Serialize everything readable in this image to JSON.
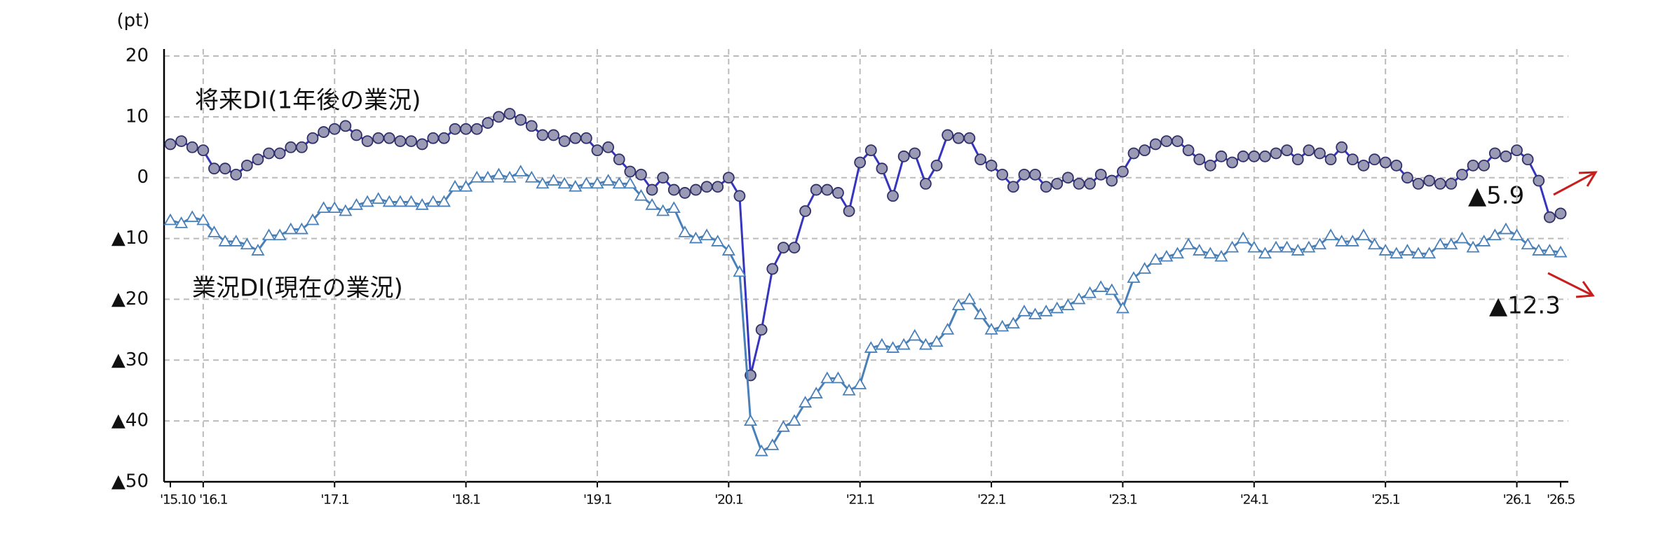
{
  "chart_data": {
    "type": "line",
    "unit_label": "(pt)",
    "categories": [
      "'15.10",
      null,
      null,
      "'16.1",
      null,
      null,
      null,
      null,
      null,
      null,
      null,
      null,
      null,
      null,
      null,
      "'17.1",
      null,
      null,
      null,
      null,
      null,
      null,
      null,
      null,
      null,
      null,
      null,
      "'18.1",
      null,
      null,
      null,
      null,
      null,
      null,
      null,
      null,
      null,
      null,
      null,
      "'19.1",
      null,
      null,
      null,
      null,
      null,
      null,
      null,
      null,
      null,
      null,
      null,
      "'20.1",
      null,
      null,
      null,
      null,
      null,
      null,
      null,
      null,
      null,
      null,
      null,
      "'21.1",
      null,
      null,
      null,
      null,
      null,
      null,
      null,
      null,
      null,
      null,
      null,
      "'22.1",
      null,
      null,
      null,
      null,
      null,
      null,
      null,
      null,
      null,
      null,
      null,
      "'23.1",
      null,
      null,
      null,
      null,
      null,
      null,
      null,
      null,
      null,
      null,
      null,
      "'24.1",
      null,
      null,
      null,
      null,
      null,
      null,
      null,
      null,
      null,
      null,
      null,
      "'25.1",
      null,
      null,
      null,
      null,
      null,
      null,
      null,
      null,
      null,
      null,
      null,
      "'26.1",
      null,
      null,
      null,
      "'26.5"
    ],
    "series": [
      {
        "name": "将来DI(1年後の業況)",
        "color": "#3535c0",
        "marker": "circle",
        "marker_fill": "#9a9ab4",
        "values": [
          5.5,
          6,
          5,
          4.5,
          1.5,
          1.5,
          0.5,
          2,
          3,
          4,
          4,
          5,
          5,
          6.5,
          7.5,
          8,
          8.5,
          7,
          6,
          6.5,
          6.5,
          6,
          6,
          5.5,
          6.5,
          6.5,
          8,
          8,
          8,
          9,
          10,
          10.5,
          9.5,
          8.5,
          7,
          7,
          6,
          6.5,
          6.5,
          4.5,
          5,
          3,
          1,
          0.5,
          -2,
          0,
          -2,
          -2.5,
          -2,
          -1.5,
          -1.5,
          0,
          -3,
          -32.5,
          -25,
          -15,
          -11.5,
          -11.5,
          -5.5,
          -2,
          -2,
          -2.5,
          -5.5,
          2.5,
          4.5,
          1.5,
          -3,
          3.5,
          4,
          -1,
          2,
          7,
          6.5,
          6.5,
          3,
          2,
          0.5,
          -1.5,
          0.5,
          0.5,
          -1.5,
          -1,
          0,
          -1,
          -1,
          0.5,
          -0.5,
          1,
          4,
          4.5,
          5.5,
          6,
          6,
          4.5,
          3,
          2,
          3.5,
          2.5,
          3.5,
          3.5,
          3.5,
          4,
          4.5,
          3,
          4.5,
          4,
          3,
          5,
          3,
          2,
          3,
          2.5,
          2,
          0,
          -1,
          -0.5,
          -1,
          -1,
          0.5,
          2,
          2,
          4,
          3.5,
          4.5,
          3,
          -0.5,
          -6.5,
          -5.9
        ]
      },
      {
        "name": "業況DI(現在の業況)",
        "color": "#4a80b8",
        "marker": "triangle",
        "marker_fill": "#ffffff",
        "values": [
          -7,
          -7.5,
          -6.5,
          -7,
          -9,
          -10.5,
          -10.5,
          -11,
          -12,
          -9.5,
          -9.5,
          -8.5,
          -8.5,
          -7,
          -5,
          -5,
          -5.5,
          -4.5,
          -4,
          -3.5,
          -4,
          -4,
          -4,
          -4.5,
          -4,
          -4,
          -1.5,
          -1.5,
          0,
          0,
          0.5,
          0,
          1,
          0,
          -1,
          -0.5,
          -1,
          -1.5,
          -1,
          -1,
          -0.5,
          -1,
          -1,
          -3,
          -4.5,
          -5.5,
          -5,
          -9,
          -10,
          -9.5,
          -10.5,
          -12,
          -15.5,
          -40,
          -45,
          -44,
          -41,
          -40,
          -37,
          -35.5,
          -33,
          -33,
          -35,
          -34,
          -28,
          -27.5,
          -28,
          -27.5,
          -26,
          -27.5,
          -27,
          -25,
          -21,
          -20,
          -22.5,
          -25,
          -24.5,
          -24,
          -22,
          -22.5,
          -22,
          -21.5,
          -21,
          -20,
          -19,
          -18,
          -18.5,
          -21.5,
          -16.5,
          -15,
          -13.5,
          -13,
          -12.5,
          -11,
          -12,
          -12.5,
          -13,
          -11.5,
          -10,
          -11.5,
          -12.5,
          -11.5,
          -11.5,
          -12,
          -11.5,
          -11,
          -9.5,
          -10.5,
          -10.5,
          -9.5,
          -11,
          -12,
          -12.5,
          -12,
          -12.5,
          -12.5,
          -11,
          -11,
          -10,
          -11.5,
          -10.5,
          -9.5,
          -8.5,
          -9.5,
          -11,
          -12,
          -12,
          -12.3
        ]
      }
    ],
    "annotations": [
      "▲5.9",
      "▲12.3"
    ],
    "ylim": [
      -50,
      20
    ],
    "yticks": [
      {
        "value": -50,
        "label": "▲50"
      },
      {
        "value": -40,
        "label": "▲40"
      },
      {
        "value": -30,
        "label": "▲30"
      },
      {
        "value": -20,
        "label": "▲20"
      },
      {
        "value": -10,
        "label": "▲10"
      },
      0,
      10,
      20
    ],
    "grid": true,
    "xgrid": true
  }
}
